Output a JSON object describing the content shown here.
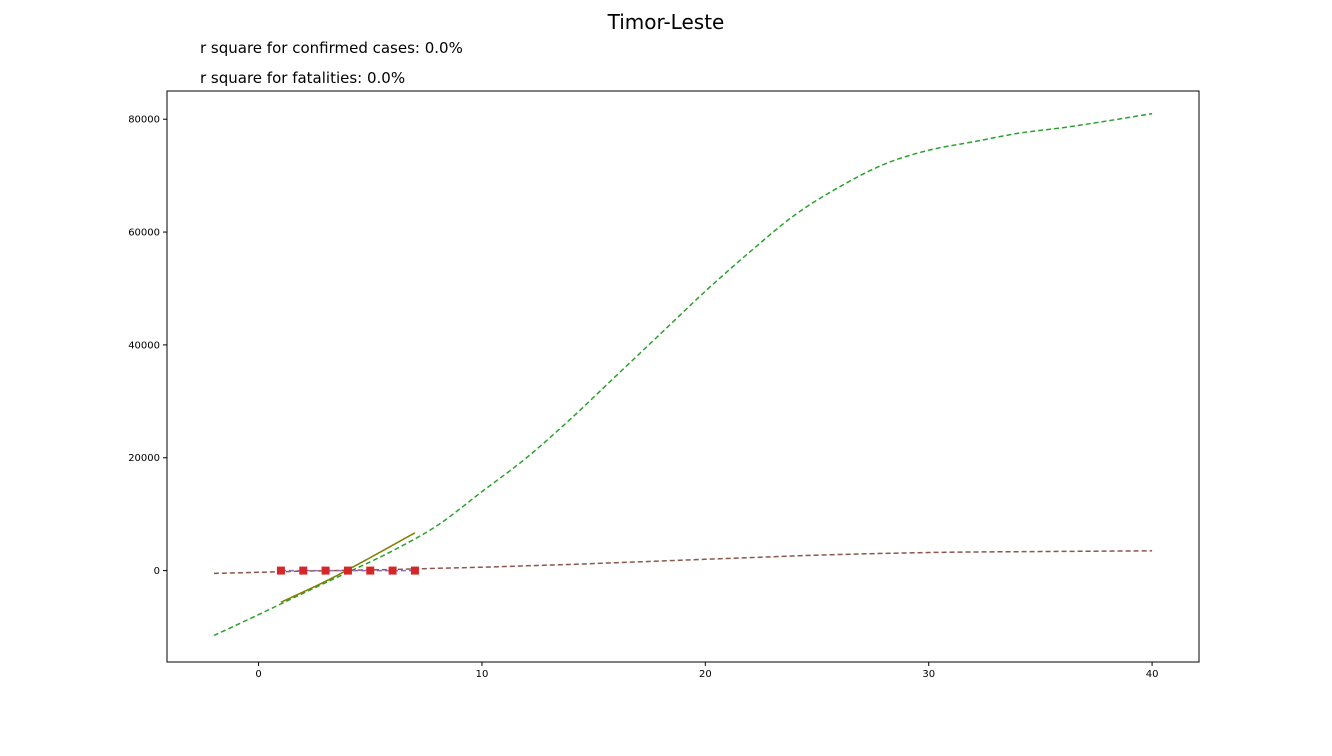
{
  "chart_data": {
    "type": "line",
    "title": "Timor-Leste",
    "annotations": [
      "r square for confirmed cases: 0.0%",
      "r square for fatalities: 0.0%"
    ],
    "xlim": [
      -4.1,
      42.1
    ],
    "ylim": [
      -16200,
      85000
    ],
    "xticks": [
      0,
      10,
      20,
      30,
      40
    ],
    "yticks": [
      0,
      20000,
      40000,
      60000,
      80000
    ],
    "grid": false,
    "colors": {
      "confirmed_fit": "#2ca02c",
      "fatalities_fit": "#8c564b",
      "confirmed_actual": "#d62728",
      "fatalities_actual": "#9467bd",
      "overlay": "#7f7f00"
    },
    "series": [
      {
        "style": "dashed",
        "color": "#2ca02c",
        "x": [
          -2,
          0,
          2,
          4,
          6,
          8,
          10,
          12,
          14,
          16,
          18,
          20,
          22,
          24,
          26,
          28,
          30,
          32,
          34,
          36,
          38,
          40
        ],
        "y": [
          -11500,
          -7800,
          -4000,
          -300,
          3500,
          8000,
          14000,
          20000,
          27000,
          34500,
          42000,
          49500,
          56500,
          63000,
          68000,
          72000,
          74500,
          76000,
          77500,
          78500,
          79700,
          81000
        ]
      },
      {
        "style": "dashed",
        "color": "#8c564b",
        "x": [
          -2,
          0,
          2,
          4,
          6,
          8,
          10,
          12,
          14,
          16,
          18,
          20,
          22,
          24,
          26,
          28,
          30,
          32,
          34,
          36,
          38,
          40
        ],
        "y": [
          -500,
          -300,
          -100,
          50,
          200,
          400,
          600,
          850,
          1100,
          1400,
          1700,
          2000,
          2300,
          2600,
          2850,
          3050,
          3200,
          3300,
          3350,
          3400,
          3450,
          3500
        ]
      },
      {
        "style": "solid",
        "color": "#7f7f00",
        "x": [
          1,
          3,
          5,
          7
        ],
        "y": [
          -5600,
          -1900,
          2300,
          6700
        ]
      },
      {
        "style": "markers",
        "color": "#d62728",
        "marker": "square",
        "x": [
          1,
          2,
          3,
          4,
          5,
          6,
          7
        ],
        "y": [
          0,
          0,
          0,
          0,
          0,
          0,
          0
        ]
      },
      {
        "style": "dashed-markers",
        "color": "#9467bd",
        "x": [
          1,
          2,
          3,
          4,
          5,
          6,
          7
        ],
        "y": [
          0,
          0,
          0,
          0,
          0,
          0,
          0
        ]
      }
    ]
  }
}
